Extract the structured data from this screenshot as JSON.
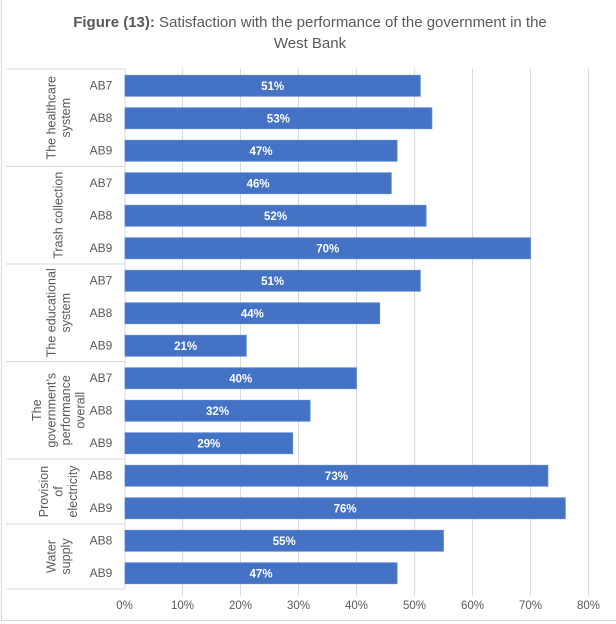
{
  "title": {
    "prefix": "Figure (13):",
    "text": " Satisfaction with the performance of the government in the West Bank"
  },
  "colors": {
    "bar": "#4472c4",
    "grid": "#d9d9d9",
    "text": "#595959"
  },
  "chart_data": {
    "type": "bar",
    "orientation": "horizontal",
    "title": "Figure (13): Satisfaction with the performance of the government in the West Bank",
    "xlabel": "",
    "ylabel": "",
    "xlim": [
      0,
      80
    ],
    "xticks": [
      "0%",
      "10%",
      "20%",
      "30%",
      "40%",
      "50%",
      "60%",
      "70%",
      "80%"
    ],
    "grid": true,
    "legend": "none",
    "groups": [
      {
        "name": "The healthcare system",
        "label_lines": [
          "The healthcare",
          "system"
        ],
        "items": [
          {
            "wave": "AB7",
            "value": 51
          },
          {
            "wave": "AB8",
            "value": 53
          },
          {
            "wave": "AB9",
            "value": 47
          }
        ]
      },
      {
        "name": "Trash collection",
        "label_lines": [
          "Trash collection"
        ],
        "items": [
          {
            "wave": "AB7",
            "value": 46
          },
          {
            "wave": "AB8",
            "value": 52
          },
          {
            "wave": "AB9",
            "value": 70
          }
        ]
      },
      {
        "name": "The educational system",
        "label_lines": [
          "The educational",
          "system"
        ],
        "items": [
          {
            "wave": "AB7",
            "value": 51
          },
          {
            "wave": "AB8",
            "value": 44
          },
          {
            "wave": "AB9",
            "value": 21
          }
        ]
      },
      {
        "name": "The government's performance overall",
        "label_lines": [
          "The",
          "government’s",
          "performance",
          "overall"
        ],
        "items": [
          {
            "wave": "AB7",
            "value": 40
          },
          {
            "wave": "AB8",
            "value": 32
          },
          {
            "wave": "AB9",
            "value": 29
          }
        ]
      },
      {
        "name": "Provision of electricity",
        "label_lines": [
          "Provision",
          "of",
          "electricity"
        ],
        "items": [
          {
            "wave": "AB8",
            "value": 73
          },
          {
            "wave": "AB9",
            "value": 76
          }
        ]
      },
      {
        "name": "Water supply",
        "label_lines": [
          "Water",
          "supply"
        ],
        "items": [
          {
            "wave": "AB8",
            "value": 55
          },
          {
            "wave": "AB9",
            "value": 47
          }
        ]
      }
    ]
  }
}
